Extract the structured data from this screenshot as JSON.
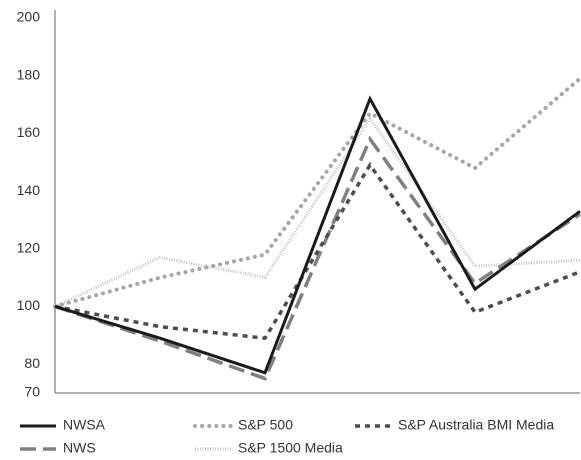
{
  "chart_data": {
    "type": "line",
    "categories": [
      null,
      null,
      null,
      null,
      null,
      null
    ],
    "ylim": [
      70,
      200
    ],
    "yticks": [
      70,
      80,
      100,
      120,
      140,
      160,
      180,
      200
    ],
    "grid": false,
    "legend": "bottom",
    "series": [
      {
        "name": "NWSA",
        "color": "#1a1a1a",
        "dash": "solid",
        "values": [
          100,
          89,
          77,
          172,
          106,
          133
        ]
      },
      {
        "name": "S&P 500",
        "color": "#a6a6a6",
        "dash": "dot",
        "values": [
          100,
          110,
          118,
          167,
          148,
          179
        ]
      },
      {
        "name": "S&P Australia BMI Media",
        "color": "#4d4d4d",
        "dash": "short",
        "values": [
          100,
          93,
          89,
          149,
          98,
          112
        ]
      },
      {
        "name": "NWS",
        "color": "#808080",
        "dash": "long",
        "values": [
          100,
          88,
          75,
          158,
          108,
          132
        ]
      },
      {
        "name": "S&P 1500 Media",
        "color": "#c4c4c4",
        "dash": "fine",
        "values": [
          100,
          117,
          110,
          165,
          114,
          116
        ]
      }
    ]
  }
}
